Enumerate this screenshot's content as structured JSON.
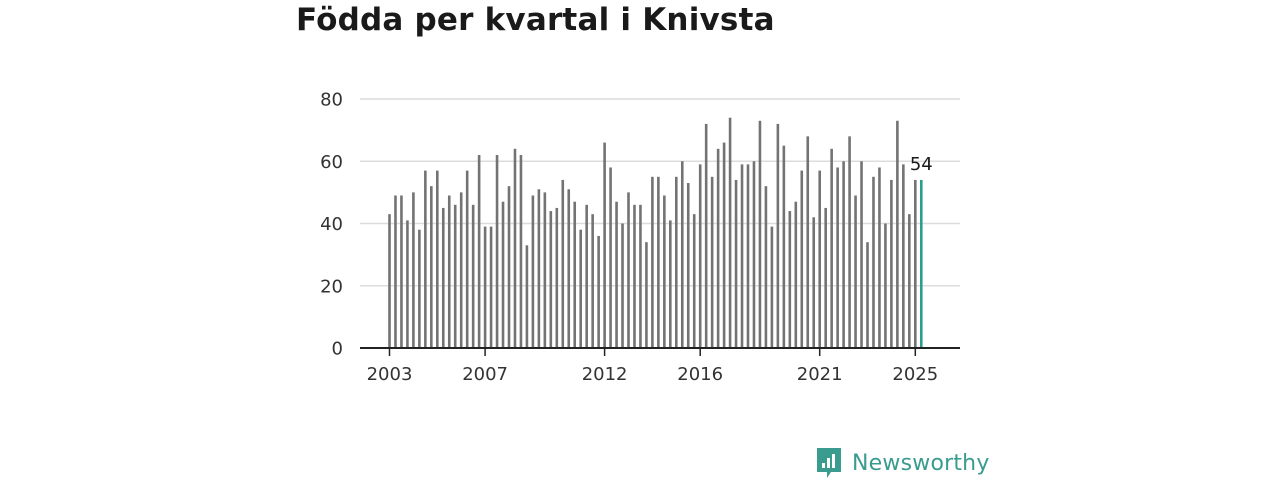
{
  "title": "Födda per kvartal i Knivsta",
  "brand": {
    "name": "Newsworthy",
    "icon": "newsworthy-logo-icon",
    "color": "#3a9b8f"
  },
  "chart_data": {
    "type": "bar",
    "title": "Födda per kvartal i Knivsta",
    "xlabel": "",
    "ylabel": "",
    "ylim": [
      0,
      80
    ],
    "yticks": [
      0,
      20,
      40,
      60,
      80
    ],
    "xticks": [
      "2003",
      "2007",
      "2012",
      "2016",
      "2021",
      "2025"
    ],
    "grid": true,
    "bar_color": "#737373",
    "highlight_color": "#2a9d8f",
    "highlight_last": true,
    "end_label": "54",
    "categories": [
      "2003 Q1",
      "2003 Q2",
      "2003 Q3",
      "2003 Q4",
      "2004 Q1",
      "2004 Q2",
      "2004 Q3",
      "2004 Q4",
      "2005 Q1",
      "2005 Q2",
      "2005 Q3",
      "2005 Q4",
      "2006 Q1",
      "2006 Q2",
      "2006 Q3",
      "2006 Q4",
      "2007 Q1",
      "2007 Q2",
      "2007 Q3",
      "2007 Q4",
      "2008 Q1",
      "2008 Q2",
      "2008 Q3",
      "2008 Q4",
      "2009 Q1",
      "2009 Q2",
      "2009 Q3",
      "2009 Q4",
      "2010 Q1",
      "2010 Q2",
      "2010 Q3",
      "2010 Q4",
      "2011 Q1",
      "2011 Q2",
      "2011 Q3",
      "2011 Q4",
      "2012 Q1",
      "2012 Q2",
      "2012 Q3",
      "2012 Q4",
      "2013 Q1",
      "2013 Q2",
      "2013 Q3",
      "2013 Q4",
      "2014 Q1",
      "2014 Q2",
      "2014 Q3",
      "2014 Q4",
      "2015 Q1",
      "2015 Q2",
      "2015 Q3",
      "2015 Q4",
      "2016 Q1",
      "2016 Q2",
      "2016 Q3",
      "2016 Q4",
      "2017 Q1",
      "2017 Q2",
      "2017 Q3",
      "2017 Q4",
      "2018 Q1",
      "2018 Q2",
      "2018 Q3",
      "2018 Q4",
      "2019 Q1",
      "2019 Q2",
      "2019 Q3",
      "2019 Q4",
      "2020 Q1",
      "2020 Q2",
      "2020 Q3",
      "2020 Q4",
      "2021 Q1",
      "2021 Q2",
      "2021 Q3",
      "2021 Q4",
      "2022 Q1",
      "2022 Q2",
      "2022 Q3",
      "2022 Q4",
      "2023 Q1",
      "2023 Q2",
      "2023 Q3",
      "2023 Q4",
      "2024 Q1",
      "2024 Q2",
      "2024 Q3",
      "2024 Q4",
      "2025 Q1",
      "2025 Q2"
    ],
    "values": [
      43,
      49,
      49,
      41,
      50,
      38,
      57,
      52,
      57,
      45,
      49,
      46,
      50,
      57,
      46,
      62,
      39,
      39,
      62,
      47,
      52,
      64,
      62,
      33,
      49,
      51,
      50,
      44,
      45,
      54,
      51,
      47,
      38,
      46,
      43,
      36,
      66,
      58,
      47,
      40,
      50,
      46,
      46,
      34,
      55,
      55,
      49,
      41,
      55,
      60,
      53,
      43,
      59,
      72,
      55,
      64,
      66,
      74,
      54,
      59,
      59,
      60,
      73,
      52,
      39,
      72,
      65,
      44,
      47,
      57,
      68,
      42,
      57,
      45,
      64,
      58,
      60,
      68,
      49,
      60,
      34,
      55,
      58,
      40,
      54,
      73,
      59,
      43,
      54,
      54
    ]
  }
}
